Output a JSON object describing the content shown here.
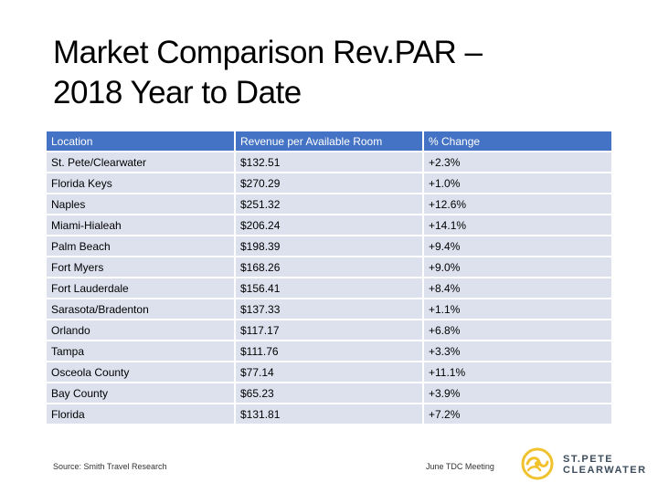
{
  "slide": {
    "title_line1": "Market Comparison Rev.PAR –",
    "title_line2": "2018 Year to Date"
  },
  "table": {
    "headers": [
      "Location",
      "Revenue per Available Room",
      "% Change"
    ],
    "rows": [
      [
        "St. Pete/Clearwater",
        "$132.51",
        "+2.3%"
      ],
      [
        "Florida Keys",
        "$270.29",
        "+1.0%"
      ],
      [
        "Naples",
        "$251.32",
        "+12.6%"
      ],
      [
        "Miami-Hialeah",
        "$206.24",
        "+14.1%"
      ],
      [
        "Palm Beach",
        "$198.39",
        "+9.4%"
      ],
      [
        "Fort Myers",
        "$168.26",
        "+9.0%"
      ],
      [
        "Fort Lauderdale",
        "$156.41",
        "+8.4%"
      ],
      [
        "Sarasota/Bradenton",
        "$137.33",
        "+1.1%"
      ],
      [
        "Orlando",
        "$117.17",
        "+6.8%"
      ],
      [
        "Tampa",
        "$111.76",
        "+3.3%"
      ],
      [
        "Osceola County",
        "$77.14",
        "+11.1%"
      ],
      [
        "Bay County",
        "$65.23",
        "+3.9%"
      ],
      [
        "Florida",
        "$131.81",
        "+7.2%"
      ]
    ]
  },
  "footer": {
    "source": "Source: Smith Travel Research",
    "meeting": "June TDC Meeting"
  },
  "logo": {
    "line1": "ST.PETE",
    "line2": "CLEARWATER",
    "icon": "sun-swirl-icon",
    "color": "#f2c12e"
  },
  "colors": {
    "header_bg": "#4472c4",
    "row_bg": "#dde1ee"
  }
}
